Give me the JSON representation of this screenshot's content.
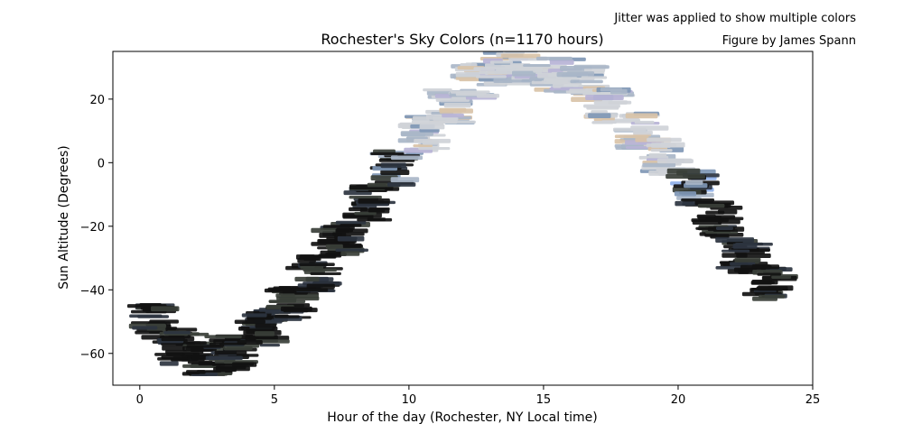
{
  "chart_data": {
    "type": "scatter",
    "title": "Rochester's Sky Colors (n=1170 hours)",
    "note_top": "Jitter was applied to show multiple colors",
    "note_credit": "Figure by James Spann",
    "xlabel": "Hour of the day (Rochester, NY Local time)",
    "ylabel": "Sun Altitude (Degrees)",
    "xlim": [
      -1,
      25
    ],
    "ylim": [
      -70,
      35
    ],
    "xticks": [
      0,
      5,
      10,
      15,
      20,
      25
    ],
    "yticks": [
      -60,
      -40,
      -20,
      0,
      20
    ],
    "grid": false,
    "legend": "none",
    "colors": {
      "night": "#111111",
      "night_alt": "#3a3f38",
      "dusk_blue": "#2d3440",
      "sky_light": "#cfd3d8",
      "sky_mid": "#a9b6c8",
      "sky_blue": "#7f97b5",
      "sky_bright_blue": "#8fb0e8",
      "sky_warm": "#d9c3a8",
      "sky_lavender": "#b7b3d6"
    },
    "hourly_altitude": [
      {
        "hour": 0.5,
        "altitude": -50
      },
      {
        "hour": 1.5,
        "altitude": -58
      },
      {
        "hour": 2.5,
        "altitude": -62
      },
      {
        "hour": 3.5,
        "altitude": -60
      },
      {
        "hour": 4.5,
        "altitude": -52
      },
      {
        "hour": 5.5,
        "altitude": -44
      },
      {
        "hour": 6.5,
        "altitude": -35
      },
      {
        "hour": 7.5,
        "altitude": -24
      },
      {
        "hour": 8.5,
        "altitude": -13
      },
      {
        "hour": 9.5,
        "altitude": -2
      },
      {
        "hour": 10.5,
        "altitude": 9
      },
      {
        "hour": 11.5,
        "altitude": 18
      },
      {
        "hour": 12.5,
        "altitude": 26
      },
      {
        "hour": 13.5,
        "altitude": 30
      },
      {
        "hour": 14.5,
        "altitude": 30
      },
      {
        "hour": 15.5,
        "altitude": 28
      },
      {
        "hour": 16.5,
        "altitude": 25
      },
      {
        "hour": 17.5,
        "altitude": 18
      },
      {
        "hour": 18.5,
        "altitude": 10
      },
      {
        "hour": 19.5,
        "altitude": 2
      },
      {
        "hour": 20.5,
        "altitude": -8
      },
      {
        "hour": 21.5,
        "altitude": -18
      },
      {
        "hour": 22.5,
        "altitude": -29
      },
      {
        "hour": 23.5,
        "altitude": -38
      }
    ]
  }
}
